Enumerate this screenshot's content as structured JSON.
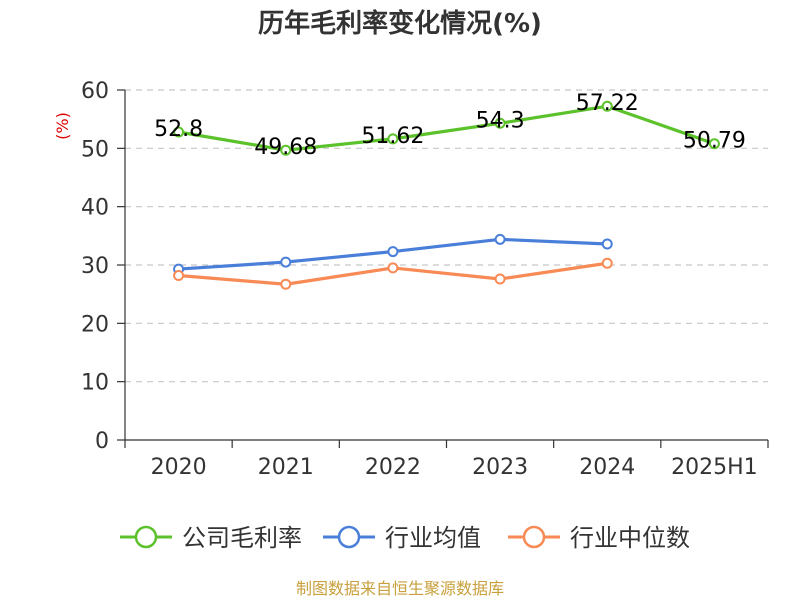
{
  "chart_data": {
    "type": "line",
    "title": "历年毛利率变化情况(%)",
    "ylabel": "(%)",
    "xlabel": "",
    "categories": [
      "2020",
      "2021",
      "2022",
      "2023",
      "2024",
      "2025H1"
    ],
    "ylim": [
      0,
      60
    ],
    "yticks": [
      0,
      10,
      20,
      30,
      40,
      50,
      60
    ],
    "grid": "horizontal-dashed",
    "legend_position": "bottom",
    "series": [
      {
        "name": "公司毛利率",
        "color": "#5cc22c",
        "values": [
          52.8,
          49.68,
          51.62,
          54.3,
          57.22,
          50.79
        ],
        "labels": [
          "52.8",
          "49.68",
          "51.62",
          "54.3",
          "57.22",
          "50.79"
        ]
      },
      {
        "name": "行业均值",
        "color": "#4a7fd9",
        "values": [
          29.3,
          30.5,
          32.3,
          34.4,
          33.6,
          null
        ]
      },
      {
        "name": "行业中位数",
        "color": "#f78a55",
        "values": [
          28.2,
          26.7,
          29.5,
          27.6,
          30.3,
          null
        ]
      }
    ],
    "source": "制图数据来自恒生聚源数据库"
  }
}
